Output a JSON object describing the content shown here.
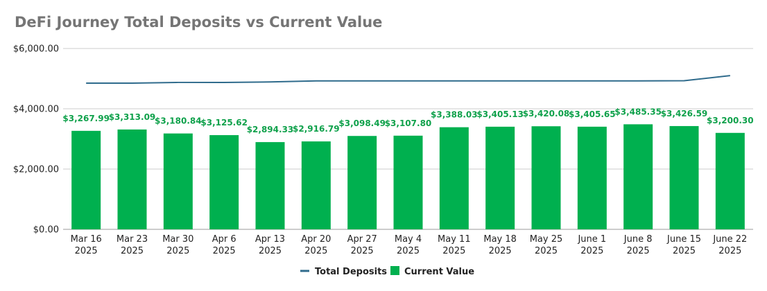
{
  "chart_data": {
    "type": "bar",
    "title": "DeFi Journey Total Deposits vs Current Value",
    "categories": [
      [
        "Mar 16",
        "2025"
      ],
      [
        "Mar 23",
        "2025"
      ],
      [
        "Mar 30",
        "2025"
      ],
      [
        "Apr 6",
        "2025"
      ],
      [
        "Apr 13",
        "2025"
      ],
      [
        "Apr 20",
        "2025"
      ],
      [
        "Apr 27",
        "2025"
      ],
      [
        "May 4",
        "2025"
      ],
      [
        "May 11",
        "2025"
      ],
      [
        "May 18",
        "2025"
      ],
      [
        "May 25",
        "2025"
      ],
      [
        "June 1",
        "2025"
      ],
      [
        "June 8",
        "2025"
      ],
      [
        "June 15",
        "2025"
      ],
      [
        "June 22",
        "2025"
      ]
    ],
    "series": [
      {
        "name": "Total Deposits",
        "kind": "line",
        "color": "#2f6b8c",
        "values": [
          4850,
          4850,
          4875,
          4875,
          4890,
          4925,
          4925,
          4925,
          4925,
          4925,
          4925,
          4925,
          4925,
          4930,
          5100
        ]
      },
      {
        "name": "Current Value",
        "kind": "bar",
        "color": "#00b04f",
        "values": [
          3267.99,
          3313.09,
          3180.84,
          3125.62,
          2894.33,
          2916.79,
          3098.49,
          3107.8,
          3388.03,
          3405.13,
          3420.08,
          3405.65,
          3485.35,
          3426.59,
          3200.3
        ],
        "labels": [
          "$3,267.99",
          "$3,313.09",
          "$3,180.84",
          "$3,125.62",
          "$2,894.33",
          "$2,916.79",
          "$3,098.49",
          "$3,107.80",
          "$3,388.03",
          "$3,405.13",
          "$3,420.08",
          "$3,405.65",
          "$3,485.35",
          "$3,426.59",
          "$3,200.30"
        ]
      }
    ],
    "ylim": [
      0,
      6000
    ],
    "yticks": [
      0,
      2000,
      4000,
      6000
    ],
    "ytick_labels": [
      "$0.00",
      "$2,000.00",
      "$4,000.00",
      "$6,000.00"
    ],
    "grid": true,
    "legend_position": "bottom-center",
    "label_color": "#0fa14b",
    "grid_color": "#cccccc"
  }
}
